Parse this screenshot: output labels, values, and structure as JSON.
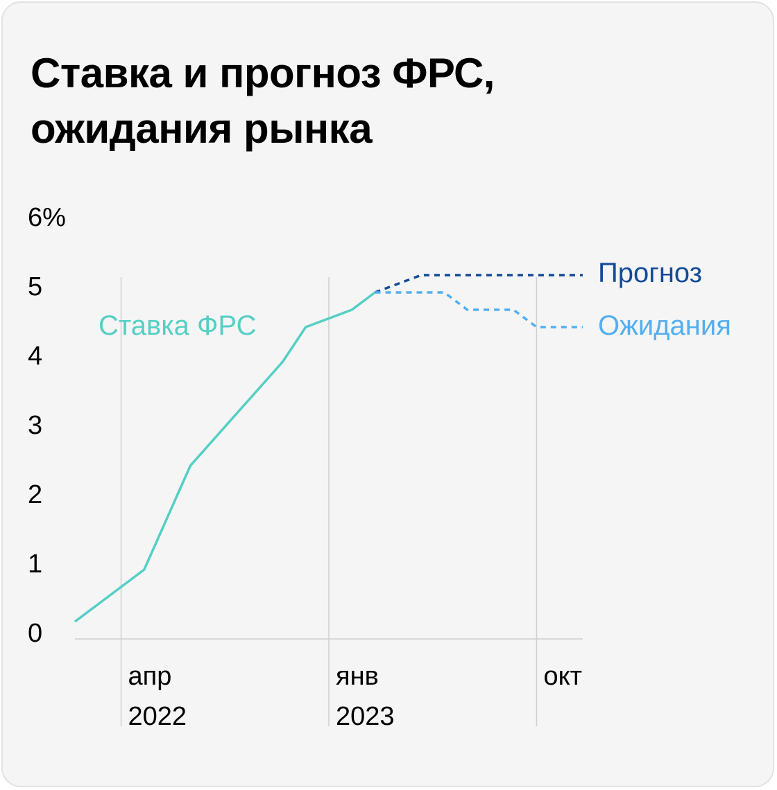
{
  "title": {
    "line1": "Ставка и прогноз ФРС,",
    "line2": "ожидания рынка"
  },
  "chart_data": {
    "type": "line",
    "title": "Ставка и прогноз ФРС, ожидания рынка",
    "y_unit": "%",
    "ylim": [
      0,
      6
    ],
    "y_ticks": [
      {
        "value": 0,
        "label": "0"
      },
      {
        "value": 1,
        "label": "1"
      },
      {
        "value": 2,
        "label": "2"
      },
      {
        "value": 3,
        "label": "3"
      },
      {
        "value": 4,
        "label": "4"
      },
      {
        "value": 5,
        "label": "5"
      },
      {
        "value": 6,
        "label": "6%"
      }
    ],
    "xlim": [
      "2022-02",
      "2023-12"
    ],
    "x_ticks": [
      {
        "x": "2022-04",
        "label": "апр",
        "sublabel": "2022"
      },
      {
        "x": "2023-01",
        "label": "янв",
        "sublabel": "2023"
      },
      {
        "x": "2023-10",
        "label": "окт",
        "sublabel": ""
      }
    ],
    "grid": "vertical at x ticks",
    "legend": "inline labels",
    "series": [
      {
        "name": "Ставка ФРС",
        "color": "#55cfc3",
        "style": "solid",
        "points": [
          {
            "x": "2022-02",
            "y": 0.25
          },
          {
            "x": "2022-03",
            "y": 0.5
          },
          {
            "x": "2022-05",
            "y": 1.0
          },
          {
            "x": "2022-06",
            "y": 1.75
          },
          {
            "x": "2022-07",
            "y": 2.5
          },
          {
            "x": "2022-09",
            "y": 3.25
          },
          {
            "x": "2022-11",
            "y": 4.0
          },
          {
            "x": "2022-12",
            "y": 4.5
          },
          {
            "x": "2023-02",
            "y": 4.75
          },
          {
            "x": "2023-03",
            "y": 5.0
          }
        ]
      },
      {
        "name": "Прогноз",
        "color": "#134b98",
        "style": "dashed",
        "points": [
          {
            "x": "2023-03",
            "y": 5.0
          },
          {
            "x": "2023-05",
            "y": 5.25
          },
          {
            "x": "2023-12",
            "y": 5.25
          }
        ]
      },
      {
        "name": "Ожидания",
        "color": "#53aef0",
        "style": "dashed",
        "points": [
          {
            "x": "2023-03",
            "y": 5.0
          },
          {
            "x": "2023-06",
            "y": 5.0
          },
          {
            "x": "2023-07",
            "y": 4.75
          },
          {
            "x": "2023-09",
            "y": 4.75
          },
          {
            "x": "2023-10",
            "y": 4.5
          },
          {
            "x": "2023-12",
            "y": 4.5
          }
        ]
      }
    ]
  }
}
